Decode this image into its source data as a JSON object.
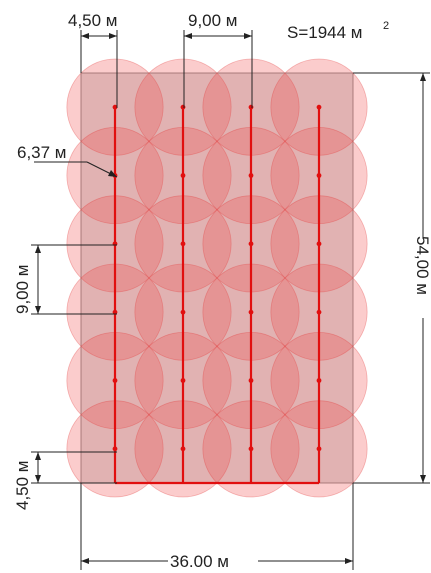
{
  "labels": {
    "spacing_half": "4,50 м",
    "spacing_full": "9,00 м",
    "area_prefix": "S=1944 м",
    "area_exponent": "2",
    "radius": "6,37 м",
    "spacing_vertical": "9,00 м",
    "half_bottom": "4,50 м",
    "height_total": "54,00 м",
    "width_total": "36.00 м"
  },
  "colors": {
    "area_fill": "#bdbdbd",
    "circle_fill": "#f04848",
    "pipe": "#e10f0f",
    "dimension": "#222222"
  },
  "grid": {
    "columns": 4,
    "rows": 6
  }
}
